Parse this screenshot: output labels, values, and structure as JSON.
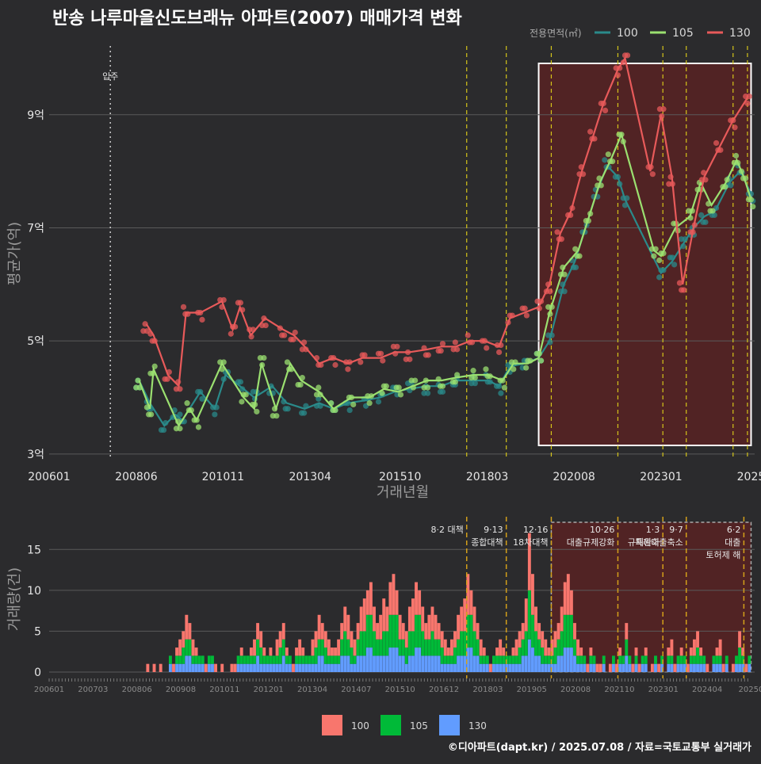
{
  "title": "반송 나루마을신도브래뉴 아파트(2007) 매매가격 변화",
  "credit": "©디아파트(dapt.kr) / 2025.07.08 / 자료=국토교통부 실거래가",
  "colors": {
    "s100": "#2a8a8a",
    "s105": "#9be070",
    "s130": "#e85a5a",
    "b100": "#f8766d",
    "b105": "#00ba38",
    "b130": "#619cff",
    "policy": "#d4c41a",
    "highlight": "#6a1e1e"
  },
  "chart_data": [
    {
      "type": "line",
      "title": "반송 나루마을신도브래뉴 아파트(2007) 매매가격 변화",
      "xlabel": "거래년월",
      "ylabel": "평균가(억)",
      "x_ticks": [
        "200601",
        "200806",
        "201011",
        "201304",
        "201510",
        "201803",
        "202008",
        "202301",
        "2025"
      ],
      "y_ticks": [
        {
          "v": 3,
          "label": "3억"
        },
        {
          "v": 5,
          "label": "5억"
        },
        {
          "v": 7,
          "label": "7억"
        },
        {
          "v": 9,
          "label": "9억"
        }
      ],
      "ylim": [
        2.9,
        10.3
      ],
      "xlim": [
        2006.0,
        2025.6
      ],
      "legend_title": "전용면적(㎡)",
      "legend_position": "top-right",
      "move_in": {
        "x": 2007.7,
        "label": "입주"
      },
      "highlight_range": [
        2019.6,
        2025.5
      ],
      "policy_lines": [
        2017.6,
        2018.7,
        2019.95,
        2021.8,
        2023.05,
        2023.7,
        2025.0,
        2025.4
      ],
      "series": [
        {
          "name": "100",
          "points": [
            [
              2008.5,
              4.3
            ],
            [
              2008.8,
              3.9
            ],
            [
              2009.2,
              3.5
            ],
            [
              2009.5,
              3.7
            ],
            [
              2009.7,
              3.6
            ],
            [
              2010.2,
              4.1
            ],
            [
              2010.6,
              3.8
            ],
            [
              2010.9,
              4.4
            ],
            [
              2011.3,
              4.2
            ],
            [
              2011.7,
              4.0
            ],
            [
              2012.2,
              4.2
            ],
            [
              2012.6,
              3.9
            ],
            [
              2013.1,
              3.8
            ],
            [
              2013.5,
              3.9
            ],
            [
              2013.9,
              3.8
            ],
            [
              2014.3,
              3.9
            ],
            [
              2014.8,
              3.95
            ],
            [
              2015.2,
              4.0
            ],
            [
              2015.6,
              4.1
            ],
            [
              2016.0,
              4.15
            ],
            [
              2016.5,
              4.2
            ],
            [
              2016.9,
              4.2
            ],
            [
              2017.3,
              4.3
            ],
            [
              2017.8,
              4.3
            ],
            [
              2018.2,
              4.3
            ],
            [
              2018.5,
              4.2
            ],
            [
              2018.8,
              4.55
            ],
            [
              2019.2,
              4.6
            ],
            [
              2019.6,
              4.7
            ],
            [
              2019.9,
              5.0
            ],
            [
              2020.3,
              6.0
            ],
            [
              2020.6,
              6.4
            ],
            [
              2020.9,
              7.0
            ],
            [
              2021.2,
              7.6
            ],
            [
              2021.5,
              8.1
            ],
            [
              2021.8,
              7.9
            ],
            [
              2022.0,
              7.5
            ],
            [
              2023.0,
              6.2
            ],
            [
              2023.3,
              6.4
            ],
            [
              2023.6,
              6.7
            ],
            [
              2023.9,
              7.0
            ],
            [
              2024.2,
              7.2
            ],
            [
              2024.5,
              7.3
            ],
            [
              2024.9,
              7.8
            ],
            [
              2025.2,
              8.0
            ],
            [
              2025.5,
              7.6
            ]
          ]
        },
        {
          "name": "105",
          "points": [
            [
              2008.5,
              4.3
            ],
            [
              2008.8,
              3.8
            ],
            [
              2008.9,
              4.5
            ],
            [
              2009.6,
              3.5
            ],
            [
              2009.9,
              3.8
            ],
            [
              2010.1,
              3.6
            ],
            [
              2010.8,
              4.6
            ],
            [
              2011.4,
              4.0
            ],
            [
              2011.7,
              3.8
            ],
            [
              2011.9,
              4.6
            ],
            [
              2012.3,
              3.8
            ],
            [
              2012.7,
              4.6
            ],
            [
              2013.0,
              4.3
            ],
            [
              2013.5,
              4.1
            ],
            [
              2013.9,
              3.8
            ],
            [
              2014.4,
              4.0
            ],
            [
              2014.9,
              4.0
            ],
            [
              2015.3,
              4.15
            ],
            [
              2015.7,
              4.1
            ],
            [
              2016.1,
              4.2
            ],
            [
              2016.5,
              4.3
            ],
            [
              2016.9,
              4.3
            ],
            [
              2017.3,
              4.35
            ],
            [
              2017.8,
              4.4
            ],
            [
              2018.2,
              4.4
            ],
            [
              2018.6,
              4.3
            ],
            [
              2018.9,
              4.6
            ],
            [
              2019.3,
              4.6
            ],
            [
              2019.6,
              4.7
            ],
            [
              2019.9,
              5.5
            ],
            [
              2020.3,
              6.3
            ],
            [
              2020.7,
              6.6
            ],
            [
              2021.0,
              7.2
            ],
            [
              2021.3,
              7.8
            ],
            [
              2021.6,
              8.2
            ],
            [
              2021.9,
              8.65
            ],
            [
              2022.8,
              6.6
            ],
            [
              2023.0,
              6.5
            ],
            [
              2023.4,
              7.0
            ],
            [
              2023.8,
              7.2
            ],
            [
              2024.1,
              7.8
            ],
            [
              2024.4,
              7.4
            ],
            [
              2024.8,
              7.8
            ],
            [
              2025.1,
              8.2
            ],
            [
              2025.3,
              7.9
            ],
            [
              2025.5,
              7.5
            ]
          ]
        },
        {
          "name": "130",
          "points": [
            [
              2008.7,
              5.3
            ],
            [
              2008.9,
              5.1
            ],
            [
              2009.3,
              4.4
            ],
            [
              2009.6,
              4.2
            ],
            [
              2009.8,
              5.5
            ],
            [
              2010.2,
              5.5
            ],
            [
              2010.8,
              5.7
            ],
            [
              2011.1,
              5.2
            ],
            [
              2011.3,
              5.6
            ],
            [
              2011.6,
              5.1
            ],
            [
              2012.0,
              5.4
            ],
            [
              2012.5,
              5.2
            ],
            [
              2012.8,
              5.1
            ],
            [
              2013.1,
              4.9
            ],
            [
              2013.5,
              4.6
            ],
            [
              2013.9,
              4.7
            ],
            [
              2014.3,
              4.6
            ],
            [
              2014.7,
              4.7
            ],
            [
              2015.2,
              4.7
            ],
            [
              2015.6,
              4.8
            ],
            [
              2016.0,
              4.8
            ],
            [
              2016.5,
              4.85
            ],
            [
              2016.9,
              4.9
            ],
            [
              2017.3,
              4.9
            ],
            [
              2017.7,
              5.0
            ],
            [
              2018.1,
              5.0
            ],
            [
              2018.5,
              4.9
            ],
            [
              2018.8,
              5.4
            ],
            [
              2019.2,
              5.5
            ],
            [
              2019.6,
              5.6
            ],
            [
              2019.9,
              6.0
            ],
            [
              2020.2,
              6.9
            ],
            [
              2020.5,
              7.3
            ],
            [
              2020.8,
              8.0
            ],
            [
              2021.1,
              8.6
            ],
            [
              2021.4,
              9.2
            ],
            [
              2021.8,
              9.8
            ],
            [
              2022.0,
              10.0
            ],
            [
              2022.7,
              8.0
            ],
            [
              2023.0,
              9.0
            ],
            [
              2023.3,
              7.9
            ],
            [
              2023.6,
              6.0
            ],
            [
              2023.9,
              7.0
            ],
            [
              2024.2,
              7.9
            ],
            [
              2024.6,
              8.4
            ],
            [
              2025.0,
              8.9
            ],
            [
              2025.4,
              9.3
            ]
          ]
        }
      ]
    },
    {
      "type": "bar",
      "xlabel": "",
      "ylabel": "거래량(건)",
      "x_ticks": [
        "200601",
        "200703",
        "200806",
        "200908",
        "201011",
        "201201",
        "201304",
        "201407",
        "201510",
        "201612",
        "201803",
        "201905",
        "202008",
        "202110",
        "202301",
        "202404",
        "20250"
      ],
      "y_ticks": [
        0,
        5,
        10,
        15
      ],
      "ylim": [
        0,
        19
      ],
      "xlim": [
        2006.0,
        2025.6
      ],
      "highlight_range": [
        2019.95,
        2025.5
      ],
      "legend_position": "bottom",
      "policy_annotations": [
        {
          "x": 2017.6,
          "lines": [
            "8·2 대책"
          ]
        },
        {
          "x": 2018.7,
          "lines": [
            "9·13",
            "종합대책"
          ]
        },
        {
          "x": 2019.95,
          "lines": [
            "12·16",
            "18차대책"
          ]
        },
        {
          "x": 2021.8,
          "lines": [
            "10·26",
            "대출규제강화"
          ]
        },
        {
          "x": 2023.05,
          "lines": [
            "1·3",
            "규제완화"
          ]
        },
        {
          "x": 2023.7,
          "lines": [
            "9·7",
            "특례대출축소"
          ]
        },
        {
          "x": 2025.3,
          "lines": [
            "6·2",
            "대출",
            "토허제 해"
          ]
        }
      ],
      "series": [
        {
          "name": "100",
          "color": "#f8766d"
        },
        {
          "name": "105",
          "color": "#00ba38"
        },
        {
          "name": "130",
          "color": "#619cff"
        }
      ],
      "monthly_totals": [
        0,
        0,
        0,
        0,
        0,
        0,
        0,
        0,
        0,
        0,
        0,
        0,
        0,
        0,
        0,
        0,
        0,
        0,
        0,
        0,
        0,
        0,
        0,
        0,
        0,
        0,
        0,
        0,
        0,
        0,
        1,
        0,
        1,
        0,
        1,
        0,
        0,
        2,
        1,
        3,
        4,
        5,
        7,
        6,
        4,
        3,
        2,
        2,
        1,
        2,
        2,
        1,
        0,
        1,
        0,
        0,
        1,
        1,
        2,
        3,
        2,
        2,
        3,
        4,
        6,
        5,
        3,
        2,
        3,
        2,
        4,
        5,
        6,
        3,
        2,
        1,
        3,
        4,
        3,
        2,
        2,
        4,
        5,
        7,
        6,
        5,
        4,
        3,
        3,
        4,
        6,
        8,
        7,
        5,
        4,
        6,
        8,
        9,
        10,
        11,
        8,
        6,
        7,
        9,
        8,
        11,
        12,
        10,
        7,
        6,
        5,
        8,
        9,
        11,
        10,
        8,
        6,
        7,
        8,
        7,
        6,
        5,
        4,
        3,
        4,
        5,
        7,
        8,
        9,
        12,
        10,
        8,
        6,
        4,
        3,
        2,
        1,
        2,
        3,
        4,
        3,
        2,
        2,
        3,
        4,
        5,
        6,
        9,
        17,
        12,
        8,
        6,
        5,
        4,
        3,
        4,
        5,
        6,
        8,
        11,
        12,
        10,
        6,
        4,
        3,
        2,
        1,
        3,
        2,
        1,
        1,
        2,
        0,
        1,
        2,
        1,
        3,
        2,
        6,
        2,
        1,
        3,
        1,
        2,
        3,
        0,
        1,
        2,
        1,
        2,
        0,
        3,
        4,
        1,
        2,
        3,
        2,
        1,
        3,
        4,
        5,
        3,
        2,
        1,
        0,
        2,
        3,
        4,
        1,
        2,
        0,
        1,
        2,
        5,
        3,
        1,
        2
      ],
      "monthly_split": [
        0.4,
        0.35,
        0.25
      ]
    }
  ]
}
